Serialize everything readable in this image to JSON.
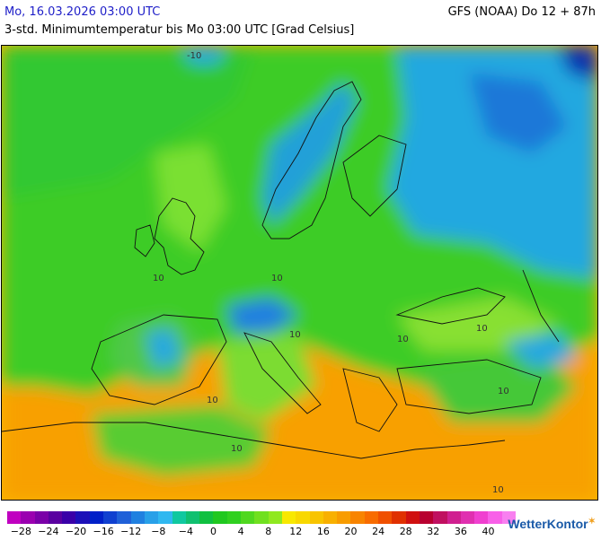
{
  "header": {
    "date_time": "Mo, 16.03.2026 03:00 UTC",
    "model_run": "GFS (NOAA) Do 12 + 87h",
    "description": "3-std. Minimumtemperatur bis Mo 03:00 UTC [Grad Celsius]"
  },
  "map": {
    "region": "Europe, North Africa, Middle East",
    "contour_labels": [
      "-10",
      "10",
      "10",
      "10",
      "10",
      "10",
      "10",
      "10",
      "10",
      "10"
    ]
  },
  "legend": {
    "tick_labels": [
      "−28",
      "−24",
      "−20",
      "−16",
      "−12",
      "−8",
      "−4",
      "0",
      "4",
      "8",
      "12",
      "16",
      "20",
      "24",
      "28",
      "32",
      "36",
      "40"
    ],
    "colors": [
      "#c800c8",
      "#a000b4",
      "#7800a0",
      "#5a0096",
      "#3c00a0",
      "#1e00b4",
      "#0000c8",
      "#0a32d2",
      "#1464dc",
      "#1e8ce6",
      "#28aaf0",
      "#32c8f0",
      "#00c8c8",
      "#00c896",
      "#00c864",
      "#00c832",
      "#14d214",
      "#32dc14",
      "#64e614",
      "#96f014",
      "#fafa00",
      "#fae600",
      "#fad200",
      "#fab400",
      "#fa9600",
      "#fa7800",
      "#fa5a00",
      "#f03c00",
      "#dc1e00",
      "#c80000",
      "#a0003c",
      "#b4146e",
      "#c81e96",
      "#dc28b4",
      "#f032c8",
      "#fa50dc",
      "#fa78f0"
    ],
    "legend_colors_visible": [
      "#c000c0",
      "#9a00b0",
      "#7a00a8",
      "#5a00a0",
      "#3a00a8",
      "#1c10b8",
      "#0020c8",
      "#1040d0",
      "#2060d8",
      "#2080e0",
      "#28a0e8",
      "#30b8f0",
      "#10c8a0",
      "#10c070",
      "#10c040",
      "#20c820",
      "#30d020",
      "#50d820",
      "#70e020",
      "#90e820",
      "#f8e800",
      "#f8d800",
      "#f8c400",
      "#f8b000",
      "#f89c00",
      "#f88400",
      "#f86c00",
      "#f05000",
      "#e03000",
      "#d01010",
      "#b80030",
      "#c01060",
      "#d02090",
      "#e030b0",
      "#f040d0",
      "#f860e8",
      "#f880f0"
    ]
  },
  "branding": {
    "logo_text": "WetterKontor"
  }
}
